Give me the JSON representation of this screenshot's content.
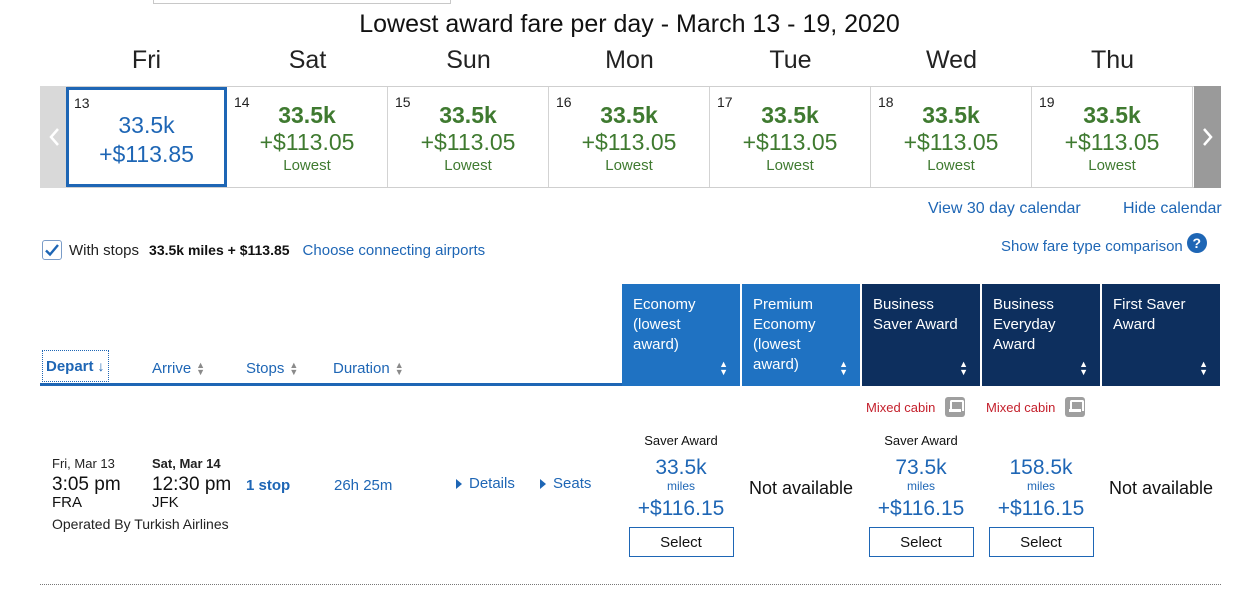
{
  "calendar": {
    "title": "Lowest award fare per day - March 13 - 19, 2020",
    "days": [
      {
        "dow": "Fri",
        "num": "13",
        "miles": "33.5k",
        "price": "+$113.85",
        "note": "",
        "selected": true
      },
      {
        "dow": "Sat",
        "num": "14",
        "miles": "33.5k",
        "price": "+$113.05",
        "note": "Lowest",
        "selected": false
      },
      {
        "dow": "Sun",
        "num": "15",
        "miles": "33.5k",
        "price": "+$113.05",
        "note": "Lowest",
        "selected": false
      },
      {
        "dow": "Mon",
        "num": "16",
        "miles": "33.5k",
        "price": "+$113.05",
        "note": "Lowest",
        "selected": false
      },
      {
        "dow": "Tue",
        "num": "17",
        "miles": "33.5k",
        "price": "+$113.05",
        "note": "Lowest",
        "selected": false
      },
      {
        "dow": "Wed",
        "num": "18",
        "miles": "33.5k",
        "price": "+$113.05",
        "note": "Lowest",
        "selected": false
      },
      {
        "dow": "Thu",
        "num": "19",
        "miles": "33.5k",
        "price": "+$113.05",
        "note": "Lowest",
        "selected": false
      }
    ],
    "prev_icon": "chevron-left-icon",
    "next_icon": "chevron-right-icon",
    "view_30_day": "View 30 day calendar",
    "hide_calendar": "Hide calendar"
  },
  "filters": {
    "with_stops_checked": true,
    "with_stops_label": "With stops",
    "with_stops_value": "33.5k miles + $113.85",
    "connecting_link": "Choose connecting airports",
    "fare_comparison_link": "Show fare type comparison",
    "help_icon": "?"
  },
  "sort": {
    "depart": "Depart",
    "arrive": "Arrive",
    "stops": "Stops",
    "duration": "Duration",
    "active": "depart"
  },
  "fare_columns": [
    {
      "label": "Economy (lowest award)",
      "style": "light"
    },
    {
      "label": "Premium Economy (lowest award)",
      "style": "light"
    },
    {
      "label": "Business Saver Award",
      "style": "dark"
    },
    {
      "label": "Business Everyday Award",
      "style": "dark"
    },
    {
      "label": "First Saver Award",
      "style": "dark"
    }
  ],
  "mixed_cabin_label": "Mixed cabin",
  "flight": {
    "depart_date": "Fri, Mar 13",
    "depart_time": "3:05 pm",
    "depart_airport": "FRA",
    "arrive_date": "Sat, Mar 14",
    "arrive_time": "12:30 pm",
    "arrive_airport": "JFK",
    "operated_by": "Operated By Turkish Airlines",
    "stops": "1 stop",
    "duration": "26h 25m",
    "details_link": "Details",
    "seats_link": "Seats",
    "fares": [
      {
        "available": true,
        "type": "Saver Award",
        "miles": "33.5k",
        "miles_unit": "miles",
        "price": "+$116.15",
        "select": "Select"
      },
      {
        "available": false,
        "text": "Not available"
      },
      {
        "available": true,
        "type": "Saver Award",
        "miles": "73.5k",
        "miles_unit": "miles",
        "price": "+$116.15",
        "select": "Select"
      },
      {
        "available": true,
        "type": "",
        "miles": "158.5k",
        "miles_unit": "miles",
        "price": "+$116.15",
        "select": "Select"
      },
      {
        "available": false,
        "text": "Not available"
      }
    ]
  },
  "colors": {
    "brand_blue": "#1e66b5",
    "header_light": "#1f72c2",
    "header_dark": "#0d2f5e",
    "fare_green": "#3f7a30",
    "alert_red": "#c41f2b"
  }
}
